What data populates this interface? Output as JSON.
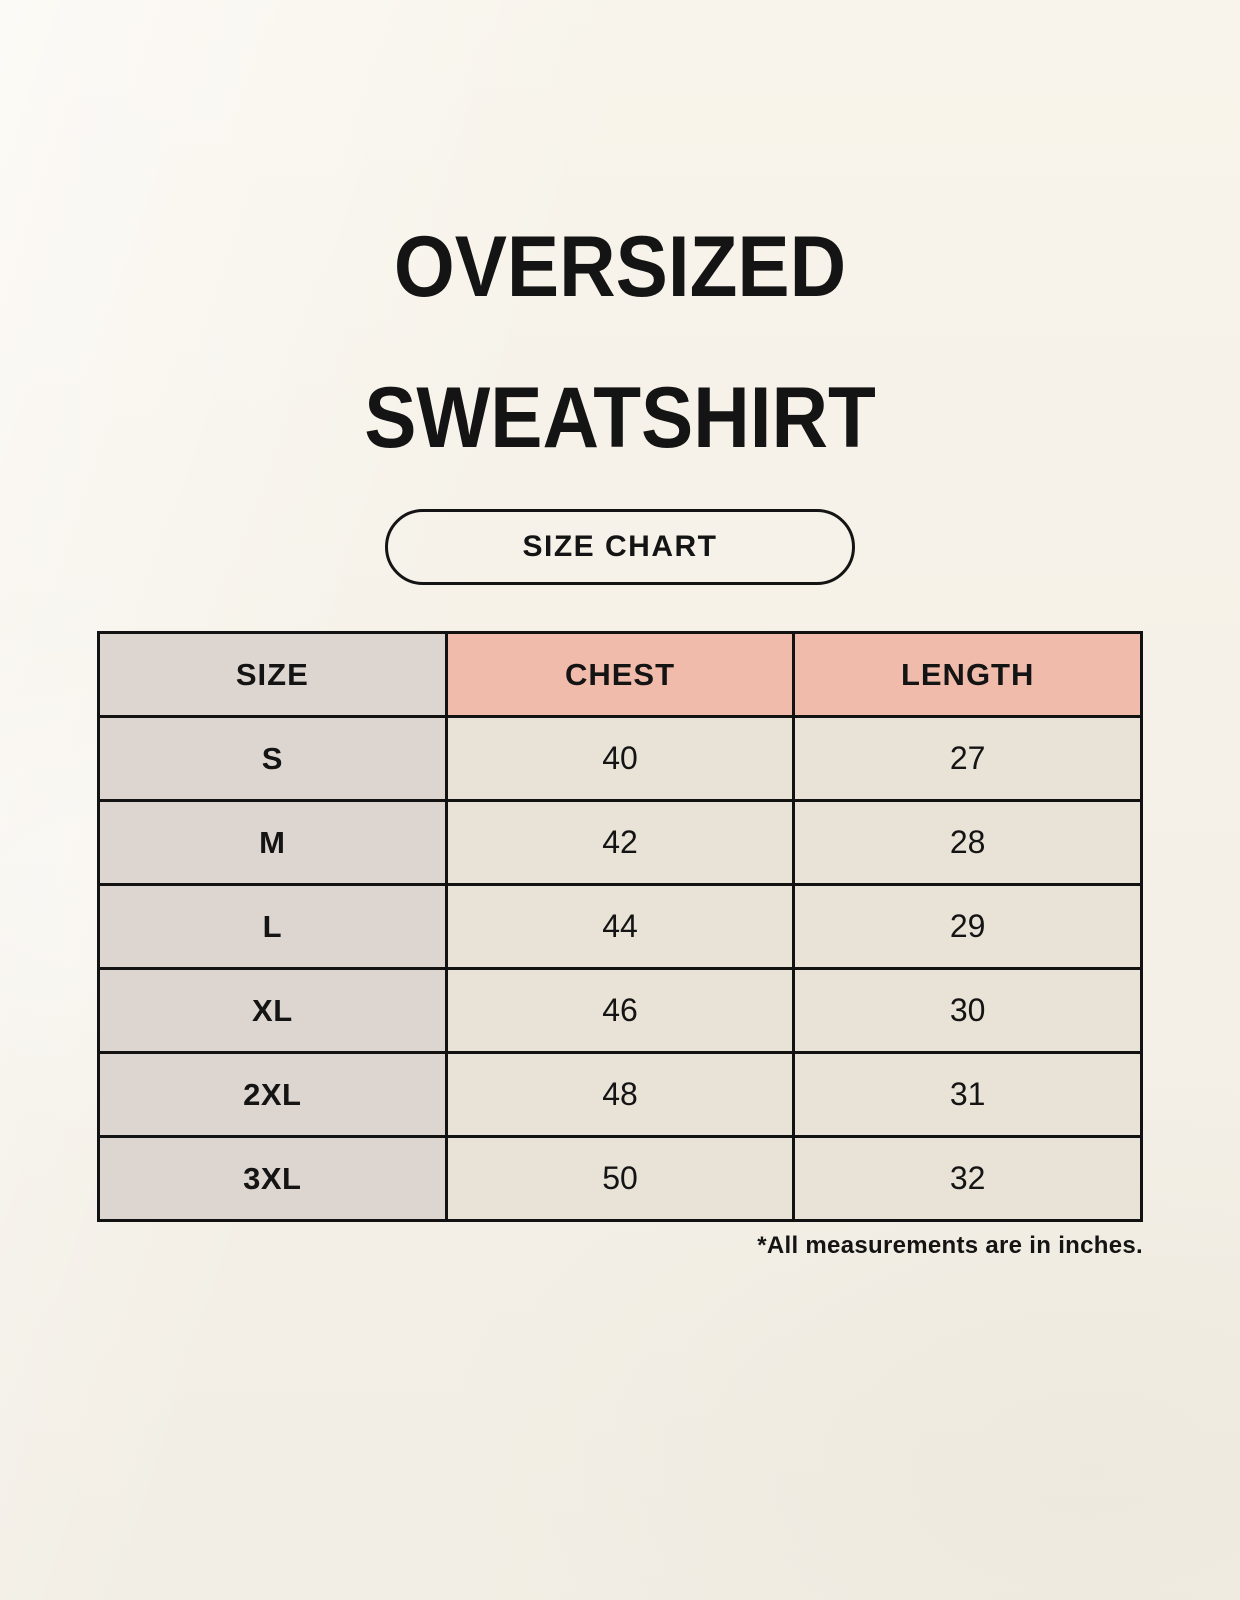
{
  "page": {
    "title_line1": "OVERSIZED",
    "title_line2": "SWEATSHIRT",
    "badge_label": "SIZE CHART",
    "footnote": "*All measurements are in inches."
  },
  "colors": {
    "background": "#f5f1e8",
    "size_column_bg": "#ddd5d0",
    "measure_header_bg": "#f0bbaa",
    "data_cell_bg": "#e9e2d7",
    "border": "#121212",
    "text": "#141414"
  },
  "chart_data": {
    "type": "table",
    "title": "OVERSIZED SWEATSHIRT",
    "subtitle": "SIZE CHART",
    "columns": [
      "SIZE",
      "CHEST",
      "LENGTH"
    ],
    "rows": [
      {
        "size": "S",
        "chest": "40",
        "length": "27"
      },
      {
        "size": "M",
        "chest": "42",
        "length": "28"
      },
      {
        "size": "L",
        "chest": "44",
        "length": "29"
      },
      {
        "size": "XL",
        "chest": "46",
        "length": "30"
      },
      {
        "size": "2XL",
        "chest": "48",
        "length": "31"
      },
      {
        "size": "3XL",
        "chest": "50",
        "length": "32"
      }
    ],
    "unit_note": "*All measurements are in inches.",
    "units": "inches"
  }
}
